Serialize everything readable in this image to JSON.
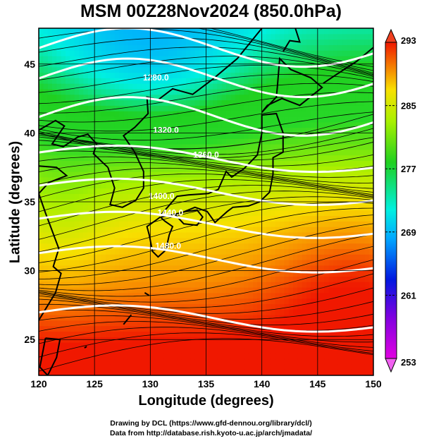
{
  "title": "MSM 00Z28Nov2024 (850.0hPa)",
  "credits": {
    "line1": "Drawing by DCL (https://www.gfd-dennou.org/library/dcl/)",
    "line2": "Data from http://database.rish.kyoto-u.ac.jp/arch/jmadata/"
  },
  "chart_data": {
    "type": "heatmap",
    "title": "MSM 00Z28Nov2024 (850.0hPa)",
    "xlabel": "Longitude (degrees)",
    "ylabel": "Latitude  (degrees)",
    "xlim": [
      120,
      150
    ],
    "ylim": [
      22.4,
      47.6
    ],
    "x_ticks": [
      "120",
      "125",
      "130",
      "135",
      "140",
      "145",
      "150"
    ],
    "y_ticks": [
      "25",
      "30",
      "35",
      "40",
      "45"
    ],
    "colorbar": {
      "ticks": [
        "293",
        "285",
        "277",
        "269",
        "261",
        "253"
      ],
      "range": [
        253,
        293
      ]
    },
    "contour_labels": [
      "1280.0",
      "1320.0",
      "1360.0",
      "1400.0",
      "1440.0",
      "1480.0"
    ],
    "contour_values": [
      1240,
      1280,
      1320,
      1360,
      1400,
      1440,
      1480,
      1520
    ],
    "grid": true
  }
}
